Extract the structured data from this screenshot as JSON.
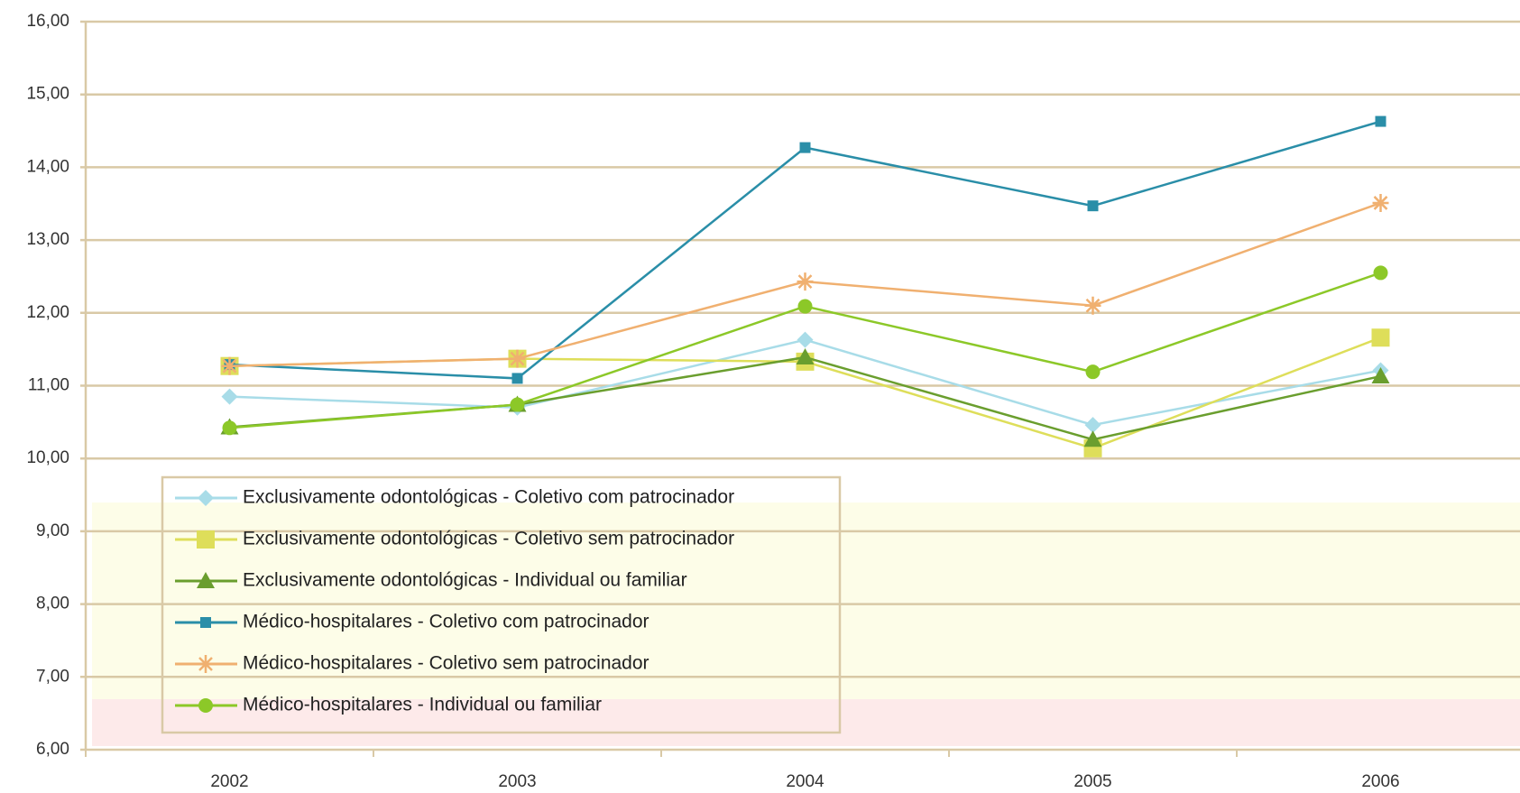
{
  "chart_data": {
    "type": "line",
    "categories": [
      "2002",
      "2003",
      "2004",
      "2005",
      "2006"
    ],
    "series": [
      {
        "name": "Exclusivamente odontológicas - Coletivo com patrocinador",
        "color": "#a8dce8",
        "marker": "diamond",
        "values": [
          10.85,
          10.7,
          11.63,
          10.46,
          11.21
        ]
      },
      {
        "name": "Exclusivamente odontológicas - Coletivo sem patrocinador",
        "color": "#dede5a",
        "marker": "square",
        "values": [
          11.27,
          11.37,
          11.33,
          10.14,
          11.66
        ]
      },
      {
        "name": "Exclusivamente odontológicas - Individual ou familiar",
        "color": "#6a9e2e",
        "marker": "triangle",
        "values": [
          10.43,
          10.74,
          11.39,
          10.26,
          11.13
        ]
      },
      {
        "name": "Médico-hospitalares - Coletivo com patrocinador",
        "color": "#2a8ea8",
        "marker": "small-square",
        "values": [
          11.29,
          11.1,
          14.27,
          13.47,
          14.63
        ]
      },
      {
        "name": "Médico-hospitalares - Coletivo sem patrocinador",
        "color": "#f0b070",
        "marker": "asterisk",
        "values": [
          11.27,
          11.37,
          12.43,
          12.1,
          13.51
        ]
      },
      {
        "name": "Médico-hospitalares - Individual ou familiar",
        "color": "#8cc828",
        "marker": "circle",
        "values": [
          10.42,
          10.74,
          12.09,
          11.19,
          12.55
        ]
      }
    ],
    "ylim": [
      6,
      16
    ],
    "yticks": [
      {
        "value": 6,
        "label": "6,00"
      },
      {
        "value": 7,
        "label": "7,00"
      },
      {
        "value": 8,
        "label": "8,00"
      },
      {
        "value": 9,
        "label": "9,00"
      },
      {
        "value": 10,
        "label": "10,00"
      },
      {
        "value": 11,
        "label": "11,00"
      },
      {
        "value": 12,
        "label": "12,00"
      },
      {
        "value": 13,
        "label": "13,00"
      },
      {
        "value": 14,
        "label": "14,00"
      },
      {
        "value": 15,
        "label": "15,00"
      },
      {
        "value": 16,
        "label": "16,00"
      }
    ],
    "grid": true,
    "legend": "lower-left"
  }
}
